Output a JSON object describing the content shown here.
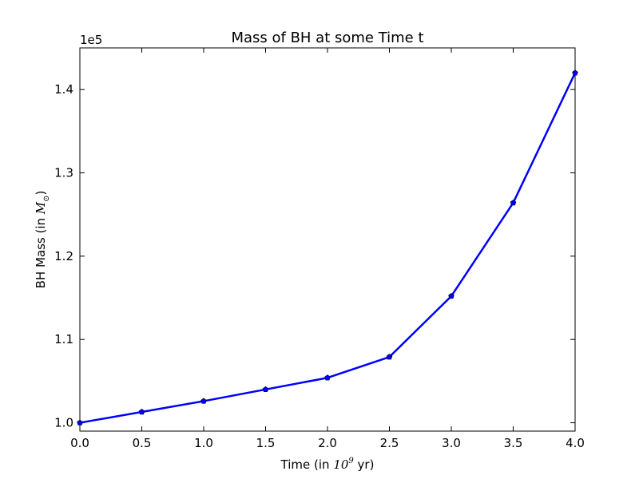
{
  "chart_data": {
    "type": "line",
    "title": "Mass of BH at some Time t",
    "xlabel": {
      "prefix": "Time (in ",
      "math_base": "10",
      "math_exp": "9",
      "suffix": "  yr)"
    },
    "ylabel": {
      "prefix": "BH Mass (in ",
      "math_base": "M",
      "math_sub": "⊙",
      "suffix": ")"
    },
    "y_offset_text": "1e5",
    "xlim": [
      0.0,
      4.0
    ],
    "ylim": [
      0.99,
      1.45
    ],
    "x_ticks": [
      0.0,
      0.5,
      1.0,
      1.5,
      2.0,
      2.5,
      3.0,
      3.5,
      4.0
    ],
    "x_tick_labels": [
      "0.0",
      "0.5",
      "1.0",
      "1.5",
      "2.0",
      "2.5",
      "3.0",
      "3.5",
      "4.0"
    ],
    "y_ticks": [
      1.0,
      1.1,
      1.2,
      1.3,
      1.4
    ],
    "y_tick_labels": [
      "1.0",
      "1.1",
      "1.2",
      "1.3",
      "1.4"
    ],
    "grid": false,
    "series": [
      {
        "color": "#0000ff",
        "marker": "pentagon",
        "x": [
          0.0,
          0.5,
          1.0,
          1.5,
          2.0,
          2.5,
          3.0,
          3.5,
          4.0
        ],
        "y": [
          1.0,
          1.013,
          1.026,
          1.04,
          1.054,
          1.079,
          1.152,
          1.264,
          1.42
        ]
      }
    ]
  }
}
